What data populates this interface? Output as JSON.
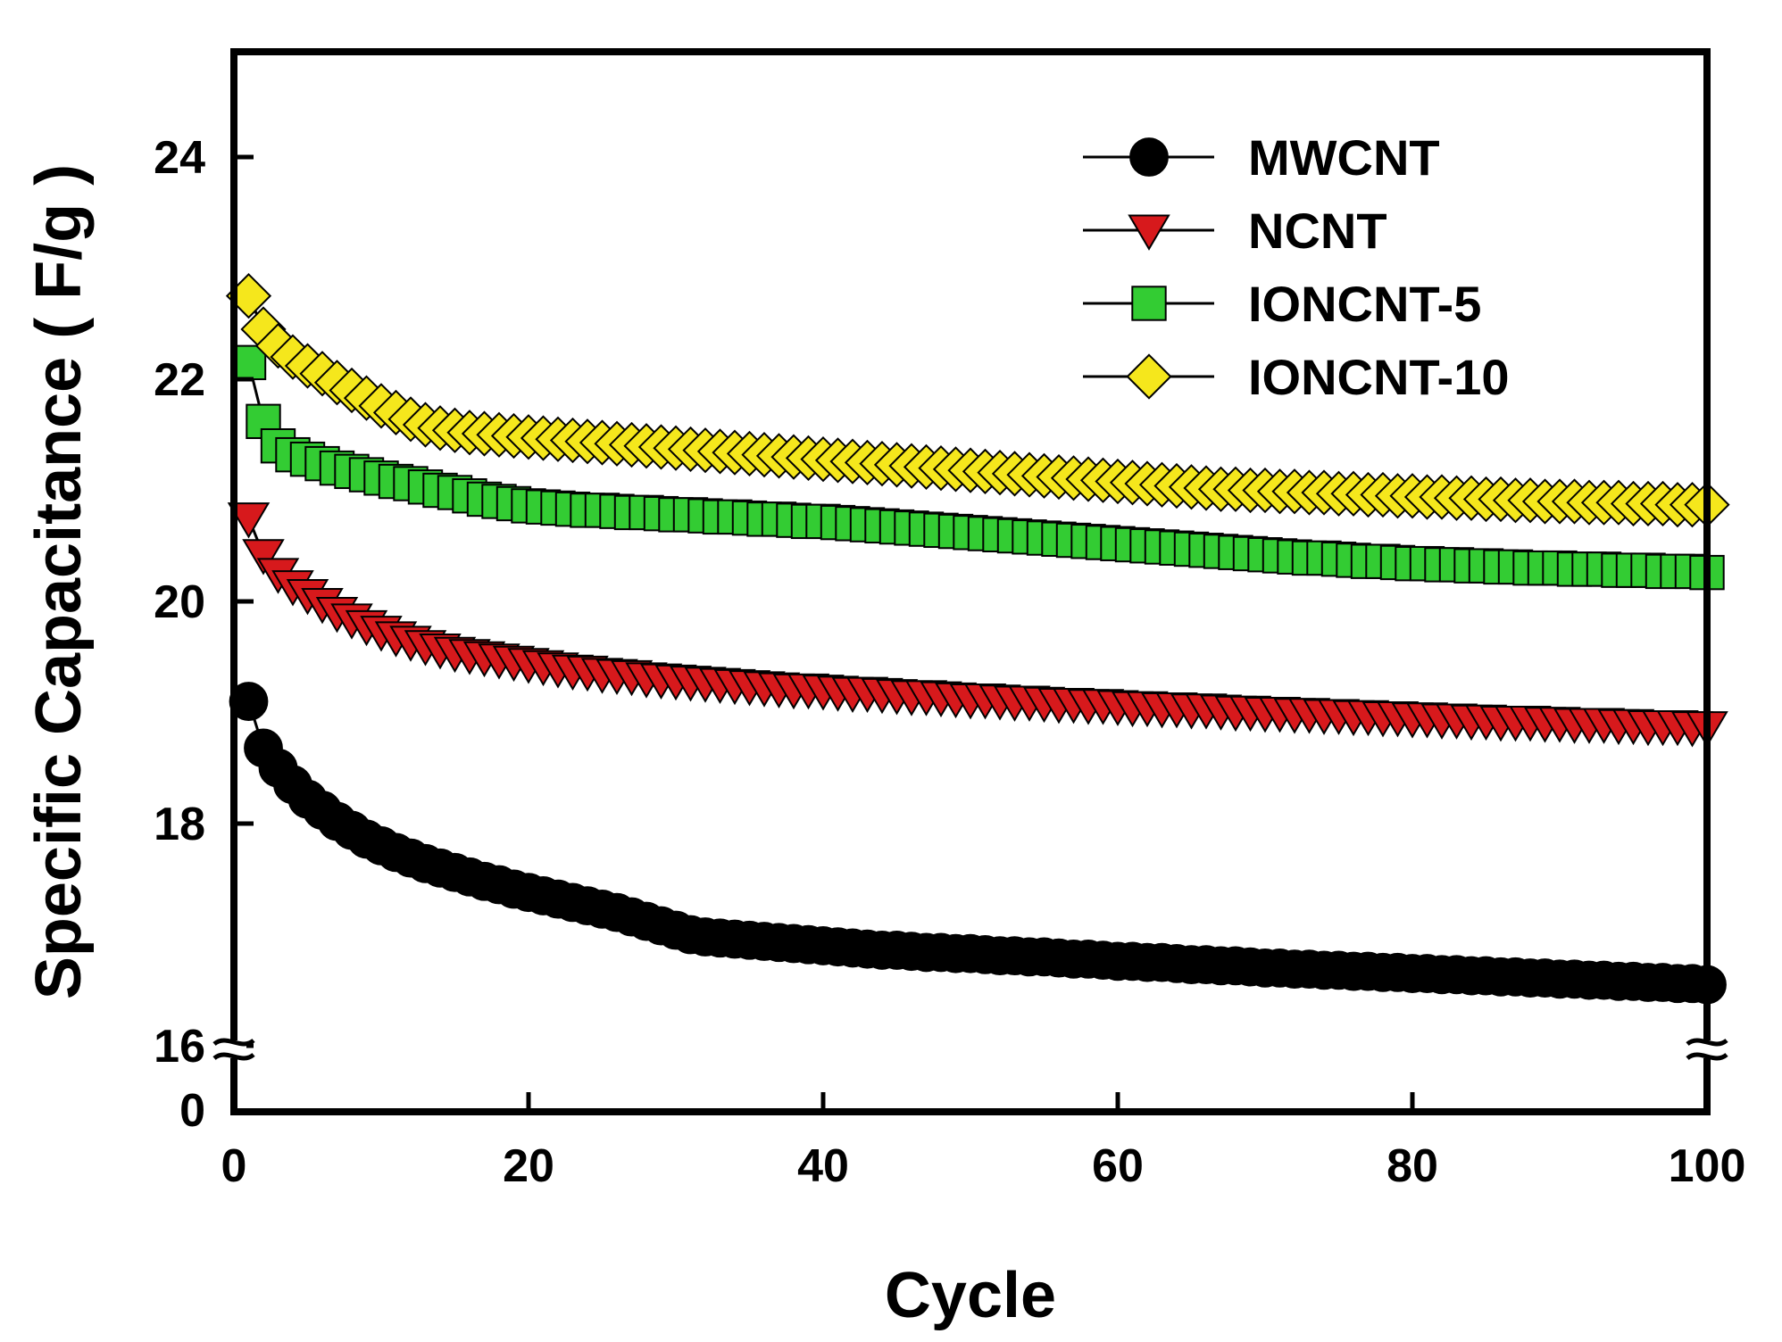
{
  "chart_data": {
    "type": "scatter",
    "xlabel": "Cycle",
    "ylabel": "Specific Capacitance ( F/g )",
    "xlim": [
      0,
      100
    ],
    "xticks": [
      "0",
      "20",
      "40",
      "60",
      "80",
      "100"
    ],
    "ylim": [
      15.4,
      25
    ],
    "axis_break": true,
    "yticks": [
      "0",
      "16",
      "18",
      "20",
      "22",
      "24"
    ],
    "grid": false,
    "legend_position": "top-right",
    "x": [
      1,
      2,
      3,
      4,
      5,
      6,
      7,
      8,
      9,
      10,
      11,
      12,
      13,
      14,
      15,
      16,
      17,
      18,
      19,
      20,
      21,
      22,
      23,
      24,
      25,
      26,
      27,
      28,
      29,
      30,
      31,
      32,
      33,
      34,
      35,
      36,
      37,
      38,
      39,
      40,
      41,
      42,
      43,
      44,
      45,
      46,
      47,
      48,
      49,
      50,
      51,
      52,
      53,
      54,
      55,
      56,
      57,
      58,
      59,
      60,
      61,
      62,
      63,
      64,
      65,
      66,
      67,
      68,
      69,
      70,
      71,
      72,
      73,
      74,
      75,
      76,
      77,
      78,
      79,
      80,
      81,
      82,
      83,
      84,
      85,
      86,
      87,
      88,
      89,
      90,
      91,
      92,
      93,
      94,
      95,
      96,
      97,
      98,
      99,
      100
    ],
    "series": [
      {
        "name": "MWCNT",
        "marker": "circle",
        "color": "#000000",
        "values": [
          19.1,
          18.68,
          18.5,
          18.35,
          18.22,
          18.12,
          18.02,
          17.94,
          17.86,
          17.8,
          17.74,
          17.69,
          17.64,
          17.6,
          17.56,
          17.52,
          17.48,
          17.45,
          17.41,
          17.38,
          17.35,
          17.32,
          17.29,
          17.26,
          17.23,
          17.2,
          17.16,
          17.12,
          17.08,
          17.04,
          17.0,
          16.98,
          16.97,
          16.96,
          16.95,
          16.94,
          16.93,
          16.92,
          16.91,
          16.9,
          16.89,
          16.88,
          16.87,
          16.86,
          16.86,
          16.85,
          16.84,
          16.84,
          16.83,
          16.83,
          16.82,
          16.81,
          16.81,
          16.8,
          16.8,
          16.79,
          16.78,
          16.78,
          16.77,
          16.76,
          16.76,
          16.75,
          16.75,
          16.74,
          16.73,
          16.73,
          16.72,
          16.72,
          16.71,
          16.7,
          16.7,
          16.69,
          16.69,
          16.68,
          16.68,
          16.67,
          16.67,
          16.66,
          16.66,
          16.65,
          16.65,
          16.64,
          16.64,
          16.63,
          16.63,
          16.62,
          16.62,
          16.61,
          16.61,
          16.6,
          16.6,
          16.59,
          16.59,
          16.58,
          16.58,
          16.57,
          16.57,
          16.56,
          16.56,
          16.55
        ]
      },
      {
        "name": "NCNT",
        "marker": "triangle-down",
        "color": "#d7191c",
        "values": [
          20.75,
          20.42,
          20.25,
          20.14,
          20.06,
          19.98,
          19.9,
          19.84,
          19.78,
          19.73,
          19.68,
          19.64,
          19.6,
          19.57,
          19.54,
          19.52,
          19.5,
          19.48,
          19.46,
          19.44,
          19.42,
          19.4,
          19.38,
          19.37,
          19.35,
          19.34,
          19.33,
          19.31,
          19.3,
          19.29,
          19.28,
          19.27,
          19.26,
          19.25,
          19.24,
          19.23,
          19.22,
          19.21,
          19.21,
          19.2,
          19.19,
          19.18,
          19.18,
          19.17,
          19.16,
          19.15,
          19.15,
          19.14,
          19.13,
          19.12,
          19.12,
          19.11,
          19.1,
          19.1,
          19.09,
          19.08,
          19.08,
          19.07,
          19.07,
          19.06,
          19.05,
          19.05,
          19.04,
          19.04,
          19.03,
          19.03,
          19.02,
          19.01,
          19.01,
          19.0,
          19.0,
          18.99,
          18.99,
          18.98,
          18.98,
          18.97,
          18.97,
          18.96,
          18.96,
          18.95,
          18.95,
          18.94,
          18.94,
          18.93,
          18.93,
          18.92,
          18.92,
          18.92,
          18.91,
          18.91,
          18.9,
          18.9,
          18.9,
          18.89,
          18.89,
          18.88,
          18.88,
          18.88,
          18.87,
          18.87
        ]
      },
      {
        "name": "IONCNT-5",
        "marker": "square",
        "color": "#33cc33",
        "values": [
          22.15,
          21.62,
          21.4,
          21.32,
          21.28,
          21.24,
          21.2,
          21.17,
          21.14,
          21.11,
          21.08,
          21.06,
          21.03,
          21.0,
          20.98,
          20.95,
          20.92,
          20.9,
          20.88,
          20.86,
          20.85,
          20.84,
          20.83,
          20.82,
          20.82,
          20.81,
          20.8,
          20.8,
          20.79,
          20.78,
          20.78,
          20.77,
          20.76,
          20.76,
          20.75,
          20.74,
          20.74,
          20.73,
          20.72,
          20.72,
          20.71,
          20.7,
          20.69,
          20.68,
          20.67,
          20.66,
          20.65,
          20.64,
          20.63,
          20.62,
          20.61,
          20.6,
          20.59,
          20.58,
          20.57,
          20.56,
          20.55,
          20.54,
          20.53,
          20.52,
          20.51,
          20.5,
          20.49,
          20.48,
          20.47,
          20.46,
          20.45,
          20.44,
          20.43,
          20.42,
          20.41,
          20.4,
          20.39,
          20.39,
          20.38,
          20.37,
          20.36,
          20.36,
          20.35,
          20.34,
          20.34,
          20.33,
          20.33,
          20.32,
          20.32,
          20.31,
          20.31,
          20.3,
          20.3,
          20.3,
          20.29,
          20.29,
          20.29,
          20.28,
          20.28,
          20.28,
          20.27,
          20.27,
          20.27,
          20.26
        ]
      },
      {
        "name": "IONCNT-10",
        "marker": "diamond",
        "color": "#f5e71c",
        "values": [
          22.75,
          22.45,
          22.3,
          22.2,
          22.12,
          22.05,
          21.97,
          21.9,
          21.83,
          21.76,
          21.7,
          21.64,
          21.59,
          21.56,
          21.54,
          21.52,
          21.51,
          21.5,
          21.49,
          21.48,
          21.47,
          21.46,
          21.45,
          21.44,
          21.43,
          21.42,
          21.41,
          21.4,
          21.39,
          21.38,
          21.37,
          21.36,
          21.35,
          21.34,
          21.33,
          21.32,
          21.31,
          21.3,
          21.29,
          21.28,
          21.27,
          21.26,
          21.25,
          21.24,
          21.23,
          21.22,
          21.21,
          21.2,
          21.19,
          21.18,
          21.17,
          21.16,
          21.15,
          21.14,
          21.13,
          21.12,
          21.11,
          21.1,
          21.09,
          21.08,
          21.07,
          21.06,
          21.05,
          21.04,
          21.03,
          21.02,
          21.01,
          21.01,
          21.0,
          21.0,
          20.99,
          20.99,
          20.98,
          20.98,
          20.97,
          20.97,
          20.96,
          20.96,
          20.95,
          20.95,
          20.94,
          20.94,
          20.93,
          20.93,
          20.92,
          20.92,
          20.91,
          20.91,
          20.9,
          20.9,
          20.9,
          20.89,
          20.89,
          20.89,
          20.88,
          20.88,
          20.88,
          20.87,
          20.87,
          20.87
        ]
      }
    ]
  }
}
